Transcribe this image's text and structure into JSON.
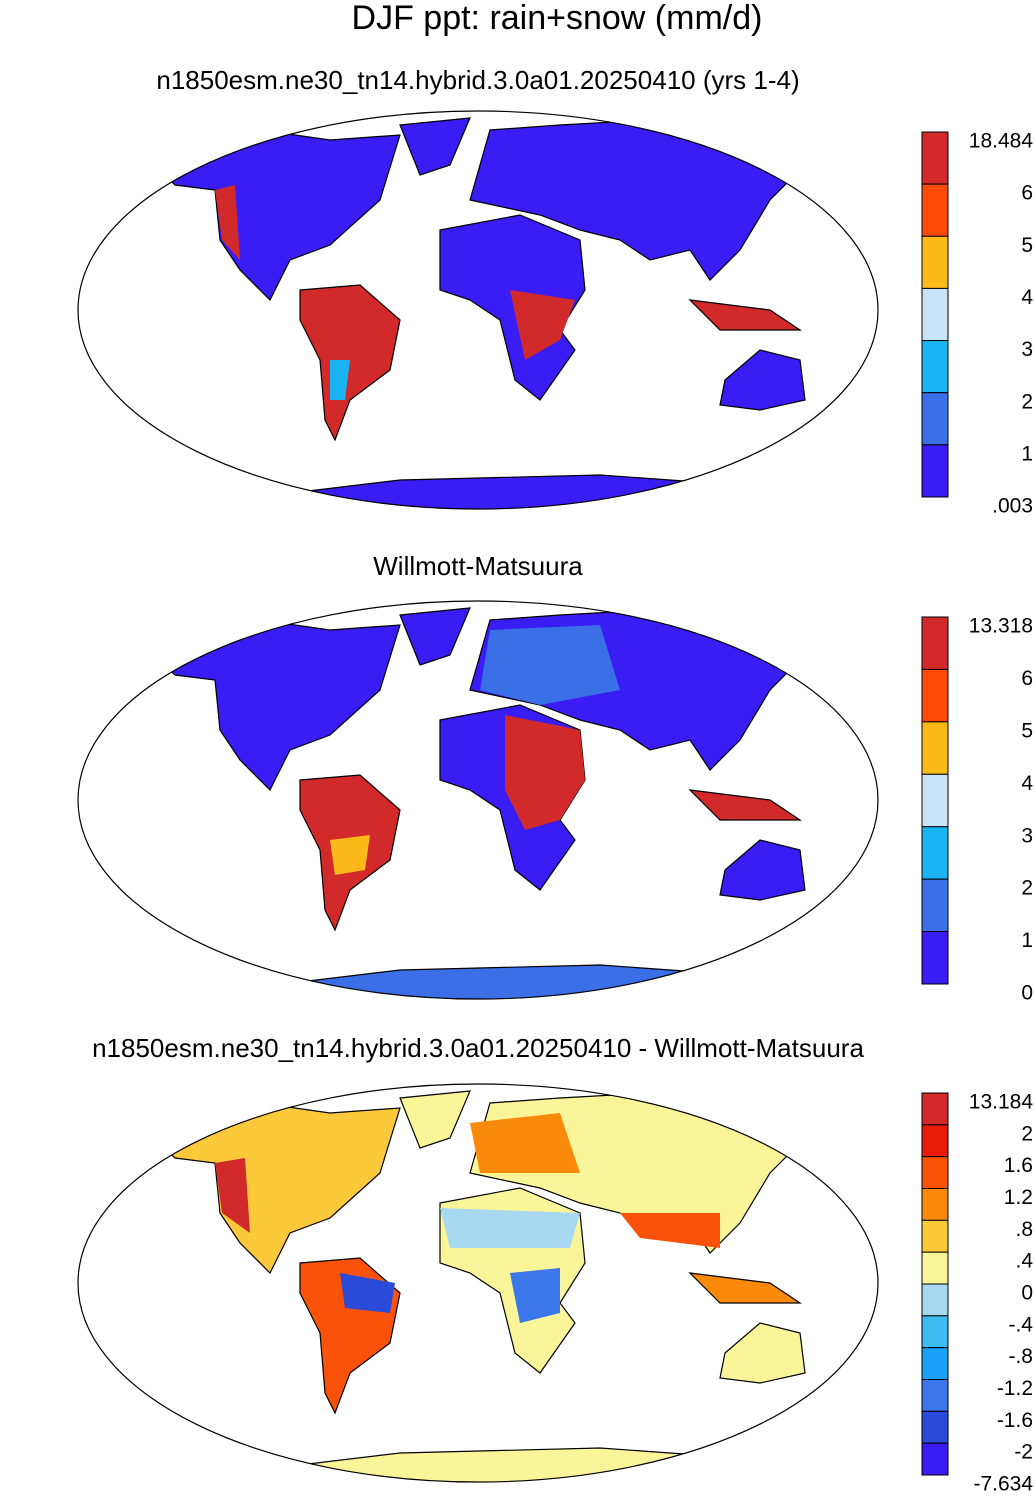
{
  "title": "DJF ppt: rain+snow (mm/d)",
  "panels": [
    {
      "subtitle": "n1850esm.ne30_tn14.hybrid.3.0a01.20250410 (yrs 1-4)",
      "colorbar": {
        "labels": [
          "18.484",
          "6",
          "5",
          "4",
          "3",
          "2",
          "1",
          ".003"
        ],
        "colors": [
          "#d22a2a",
          "#ff4a0a",
          "#fbb91a",
          "#c8e4f8",
          "#1ab4f2",
          "#3b6fe8",
          "#3a1cf5"
        ]
      }
    },
    {
      "subtitle": "Willmott-Matsuura",
      "colorbar": {
        "labels": [
          "13.318",
          "6",
          "5",
          "4",
          "3",
          "2",
          "1",
          "0"
        ],
        "colors": [
          "#d22a2a",
          "#ff4a0a",
          "#fbb91a",
          "#c8e4f8",
          "#1ab4f2",
          "#3b6fe8",
          "#3a1cf5"
        ]
      }
    },
    {
      "subtitle": "n1850esm.ne30_tn14.hybrid.3.0a01.20250410 - Willmott-Matsuura",
      "colorbar": {
        "labels": [
          "13.184",
          "2",
          "1.6",
          "1.2",
          ".8",
          ".4",
          "0",
          "-.4",
          "-.8",
          "-1.2",
          "-1.6",
          "-2",
          "-7.634"
        ],
        "colors": [
          "#d22a2a",
          "#e81a0a",
          "#fb520a",
          "#fb8a0a",
          "#fbc93a",
          "#fbf59a",
          "#a8d8ef",
          "#3cbcf0",
          "#1aa0f5",
          "#3b76ea",
          "#2a4ad8",
          "#3a1cf5"
        ]
      }
    }
  ]
}
